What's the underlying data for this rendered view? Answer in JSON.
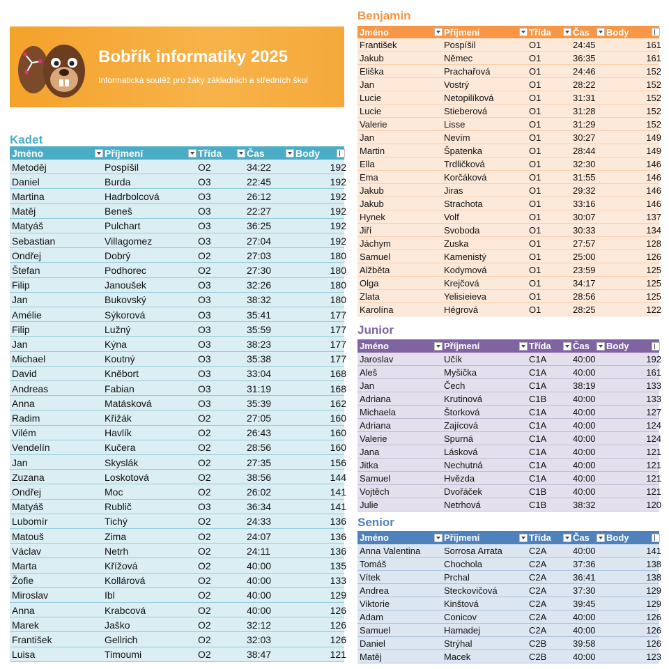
{
  "banner": {
    "title": "Bobřík informatiky 2025",
    "subtitle": "Informatická soutěž pro žáky základních a středních škol"
  },
  "tables": [
    {
      "title": "Kadet",
      "headers": [
        "Jméno",
        "Příjmení",
        "Třída",
        "Čas",
        "Body"
      ],
      "rows": [
        [
          "Metoděj",
          "Pospíšil",
          "O2",
          "34:22",
          192
        ],
        [
          "Daniel",
          "Burda",
          "O3",
          "22:45",
          192
        ],
        [
          "Martina",
          "Hadrbolcová",
          "O3",
          "26:12",
          192
        ],
        [
          "Matěj",
          "Beneš",
          "O3",
          "22:27",
          192
        ],
        [
          "Matyáš",
          "Pulchart",
          "O3",
          "36:25",
          192
        ],
        [
          "Sebastian",
          "Villagomez",
          "O3",
          "27:04",
          192
        ],
        [
          "Ondřej",
          "Dobrý",
          "O2",
          "27:03",
          180
        ],
        [
          "Štefan",
          "Podhorec",
          "O2",
          "27:30",
          180
        ],
        [
          "Filip",
          "Janoušek",
          "O3",
          "32:26",
          180
        ],
        [
          "Jan",
          "Bukovský",
          "O3",
          "38:32",
          180
        ],
        [
          "Amélie",
          "Sýkorová",
          "O3",
          "35:41",
          177
        ],
        [
          "Filip",
          "Lužný",
          "O3",
          "35:59",
          177
        ],
        [
          "Jan",
          "Kýna",
          "O3",
          "38:23",
          177
        ],
        [
          "Michael",
          "Koutný",
          "O3",
          "35:38",
          177
        ],
        [
          "David",
          "Kněbort",
          "O3",
          "33:04",
          168
        ],
        [
          "Andreas",
          "Fabian",
          "O3",
          "31:19",
          168
        ],
        [
          "Anna",
          "Matásková",
          "O3",
          "35:39",
          162
        ],
        [
          "Radim",
          "Křižák",
          "O2",
          "27:05",
          160
        ],
        [
          "Vilém",
          "Havlík",
          "O2",
          "26:43",
          160
        ],
        [
          "Vendelín",
          "Kučera",
          "O2",
          "28:56",
          160
        ],
        [
          "Jan",
          "Skyslák",
          "O2",
          "27:35",
          156
        ],
        [
          "Zuzana",
          "Loskotová",
          "O2",
          "38:56",
          144
        ],
        [
          "Ondřej",
          "Moc",
          "O2",
          "26:02",
          141
        ],
        [
          "Matyáš",
          "Rublič",
          "O3",
          "36:34",
          141
        ],
        [
          "Lubomír",
          "Tichý",
          "O2",
          "24:33",
          136
        ],
        [
          "Matouš",
          "Zima",
          "O2",
          "24:07",
          136
        ],
        [
          "Václav",
          "Netrh",
          "O2",
          "24:11",
          136
        ],
        [
          "Marta",
          "Křížová",
          "O2",
          "40:00",
          135
        ],
        [
          "Žofie",
          "Kollárová",
          "O2",
          "40:00",
          133
        ],
        [
          "Miroslav",
          "Ibl",
          "O2",
          "40:00",
          129
        ],
        [
          "Anna",
          "Krabcová",
          "O2",
          "40:00",
          126
        ],
        [
          "Marek",
          "Jaško",
          "O2",
          "32:12",
          126
        ],
        [
          "František",
          "Gellrich",
          "O2",
          "32:03",
          126
        ],
        [
          "Luisa",
          "Timoumi",
          "O2",
          "38:47",
          121
        ]
      ]
    },
    {
      "title": "Benjamin",
      "headers": [
        "Jméno",
        "Příjmení",
        "Třída",
        "Čas",
        "Body"
      ],
      "rows": [
        [
          "František",
          "Pospíšil",
          "O1",
          "24:45",
          161
        ],
        [
          "Jakub",
          "Němec",
          "O1",
          "36:35",
          161
        ],
        [
          "Eliška",
          "Prachařová",
          "O1",
          "24:46",
          152
        ],
        [
          "Jan",
          "Vostrý",
          "O1",
          "28:22",
          152
        ],
        [
          "Lucie",
          "Netopilíková",
          "O1",
          "31:31",
          152
        ],
        [
          "Lucie",
          "Stieberová",
          "O1",
          "31:28",
          152
        ],
        [
          "Valerie",
          "Lisse",
          "O1",
          "31:29",
          152
        ],
        [
          "Jan",
          "Nevím",
          "O1",
          "30:27",
          149
        ],
        [
          "Martin",
          "Špatenka",
          "O1",
          "28:44",
          149
        ],
        [
          "Ella",
          "Trdličková",
          "O1",
          "32:30",
          146
        ],
        [
          "Ema",
          "Korčáková",
          "O1",
          "31:55",
          146
        ],
        [
          "Jakub",
          "Jiras",
          "O1",
          "29:32",
          146
        ],
        [
          "Jakub",
          "Strachota",
          "O1",
          "33:16",
          146
        ],
        [
          "Hynek",
          "Volf",
          "O1",
          "30:07",
          137
        ],
        [
          "Jiří",
          "Svoboda",
          "O1",
          "30:33",
          134
        ],
        [
          "Jáchym",
          "Zuska",
          "O1",
          "27:57",
          128
        ],
        [
          "Samuel",
          "Kamenistý",
          "O1",
          "25:00",
          126
        ],
        [
          "Alžběta",
          "Kodymová",
          "O1",
          "23:59",
          125
        ],
        [
          "Olga",
          "Krejčová",
          "O1",
          "34:17",
          125
        ],
        [
          "Zlata",
          "Yelisieieva",
          "O1",
          "28:56",
          125
        ],
        [
          "Karolína",
          "Hégrová",
          "O1",
          "28:25",
          122
        ]
      ]
    },
    {
      "title": "Junior",
      "headers": [
        "Jméno",
        "Příjmení",
        "Třída",
        "Čas",
        "Body"
      ],
      "rows": [
        [
          "Jaroslav",
          "Učík",
          "C1A",
          "40:00",
          192
        ],
        [
          "Aleš",
          "Myšička",
          "C1A",
          "40:00",
          161
        ],
        [
          "Jan",
          "Čech",
          "C1A",
          "38:19",
          133
        ],
        [
          "Adriana",
          "Krutinová",
          "C1B",
          "40:00",
          133
        ],
        [
          "Michaela",
          "Štorková",
          "C1A",
          "40:00",
          127
        ],
        [
          "Adriana",
          "Zajícová",
          "C1A",
          "40:00",
          124
        ],
        [
          "Valerie",
          "Spurná",
          "C1A",
          "40:00",
          124
        ],
        [
          "Jana",
          "Lásková",
          "C1A",
          "40:00",
          121
        ],
        [
          "Jitka",
          "Nechutná",
          "C1A",
          "40:00",
          121
        ],
        [
          "Samuel",
          "Hvězda",
          "C1A",
          "40:00",
          121
        ],
        [
          "Vojtěch",
          "Dvořáček",
          "C1B",
          "40:00",
          121
        ],
        [
          "Julie",
          "Netrhová",
          "C1B",
          "38:32",
          120
        ]
      ]
    },
    {
      "title": "Senior",
      "headers": [
        "Jméno",
        "Příjmení",
        "Třída",
        "Čas",
        "Body"
      ],
      "rows": [
        [
          "Anna Valentina",
          "Sorrosa Arrata",
          "C2A",
          "40:00",
          141
        ],
        [
          "Tomáš",
          "Chochola",
          "C2A",
          "37:36",
          138
        ],
        [
          "Vítek",
          "Prchal",
          "C2A",
          "36:41",
          138
        ],
        [
          "Andrea",
          "Steckovičová",
          "C2A",
          "37:30",
          129
        ],
        [
          "Viktorie",
          "Kinštová",
          "C2A",
          "39:45",
          129
        ],
        [
          "Adam",
          "Conicov",
          "C2A",
          "40:00",
          126
        ],
        [
          "Samuel",
          "Hamadej",
          "C2A",
          "40:00",
          126
        ],
        [
          "Daniel",
          "Strýhal",
          "C2B",
          "39:58",
          126
        ],
        [
          "Matěj",
          "Macek",
          "C2B",
          "40:00",
          123
        ]
      ]
    }
  ]
}
